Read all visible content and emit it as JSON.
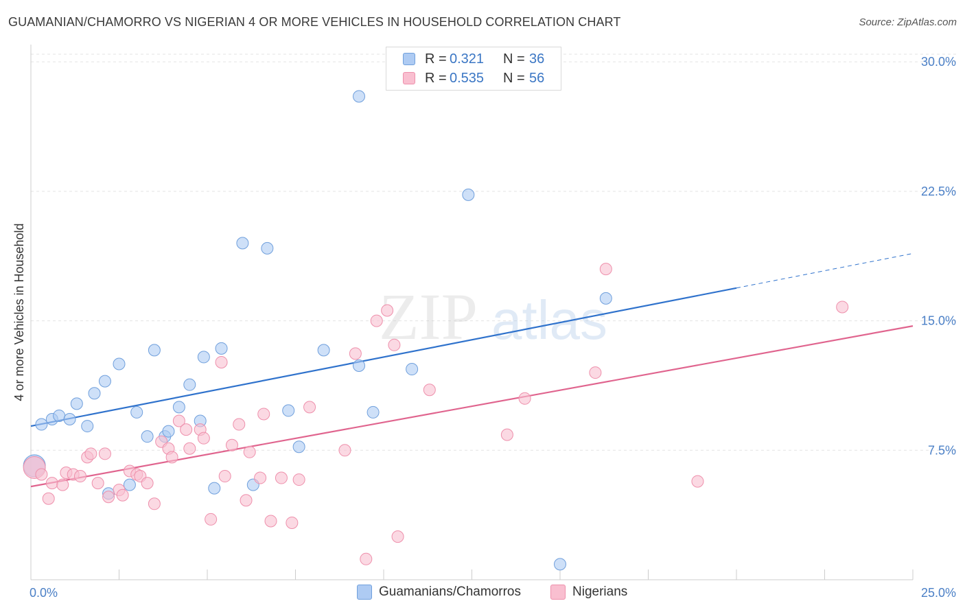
{
  "title": "GUAMANIAN/CHAMORRO VS NIGERIAN 4 OR MORE VEHICLES IN HOUSEHOLD CORRELATION CHART",
  "source": "Source: ZipAtlas.com",
  "watermark": {
    "zip": "ZIP",
    "atlas": "atlas"
  },
  "legend": {
    "rows": [
      {
        "r_label": "R =",
        "r_value": "0.321",
        "n_label": "N =",
        "n_value": "36",
        "color": "#aecbf3"
      },
      {
        "r_label": "R =",
        "r_value": "0.535",
        "n_label": "N =",
        "n_value": "56",
        "color": "#f9bfd0"
      }
    ]
  },
  "bottom_legend": [
    {
      "label": "Guamanians/Chamorros",
      "color": "#aecbf3"
    },
    {
      "label": "Nigerians",
      "color": "#f9bfd0"
    }
  ],
  "chart_data": {
    "type": "scatter",
    "xlabel": "",
    "ylabel": "4 or more Vehicles in Household",
    "xlim": [
      0,
      25
    ],
    "ylim": [
      0,
      31
    ],
    "x_tick_labels": [
      {
        "value": 0,
        "label": "0.0%"
      },
      {
        "value": 25,
        "label": "25.0%"
      }
    ],
    "y_tick_labels": [
      {
        "value": 7.5,
        "label": "7.5%"
      },
      {
        "value": 15,
        "label": "15.0%"
      },
      {
        "value": 22.5,
        "label": "22.5%"
      },
      {
        "value": 30,
        "label": "30.0%"
      }
    ],
    "grid": true,
    "series": [
      {
        "name": "Guamanians/Chamorros",
        "color": "#aecbf3",
        "stroke": "#6f9fdc",
        "trend_color": "#2f72cc",
        "trend": {
          "x0": 0,
          "y0": 8.9,
          "x1": 20,
          "y1": 16.9,
          "dash_to_x": 25,
          "dash_to_y": 18.9
        },
        "points": [
          [
            0.1,
            6.6
          ],
          [
            0.3,
            9.0
          ],
          [
            0.6,
            9.3
          ],
          [
            0.8,
            9.5
          ],
          [
            1.1,
            9.3
          ],
          [
            1.3,
            10.2
          ],
          [
            1.6,
            8.9
          ],
          [
            1.8,
            10.8
          ],
          [
            2.1,
            11.5
          ],
          [
            2.2,
            5.0
          ],
          [
            2.5,
            12.5
          ],
          [
            2.8,
            5.5
          ],
          [
            3.0,
            9.7
          ],
          [
            3.3,
            8.3
          ],
          [
            3.5,
            13.3
          ],
          [
            3.8,
            8.3
          ],
          [
            3.9,
            8.6
          ],
          [
            4.2,
            10.0
          ],
          [
            4.5,
            11.3
          ],
          [
            4.8,
            9.2
          ],
          [
            4.9,
            12.9
          ],
          [
            5.2,
            5.3
          ],
          [
            5.4,
            13.4
          ],
          [
            6.0,
            19.5
          ],
          [
            6.3,
            5.5
          ],
          [
            6.7,
            19.2
          ],
          [
            7.3,
            9.8
          ],
          [
            7.6,
            7.7
          ],
          [
            8.3,
            13.3
          ],
          [
            9.3,
            28.0
          ],
          [
            9.3,
            12.4
          ],
          [
            9.7,
            9.7
          ],
          [
            10.8,
            12.2
          ],
          [
            12.4,
            22.3
          ],
          [
            15.0,
            0.9
          ],
          [
            16.3,
            16.3
          ]
        ]
      },
      {
        "name": "Nigerians",
        "color": "#f9bfd0",
        "stroke": "#ee8fab",
        "trend_color": "#e0648e",
        "trend": {
          "x0": 0,
          "y0": 5.4,
          "x1": 25,
          "y1": 14.7
        },
        "points": [
          [
            0.1,
            6.5
          ],
          [
            0.3,
            6.1
          ],
          [
            0.5,
            4.7
          ],
          [
            0.6,
            5.6
          ],
          [
            0.9,
            5.5
          ],
          [
            1.0,
            6.2
          ],
          [
            1.2,
            6.1
          ],
          [
            1.4,
            6.0
          ],
          [
            1.6,
            7.1
          ],
          [
            1.7,
            7.3
          ],
          [
            1.9,
            5.6
          ],
          [
            2.1,
            7.3
          ],
          [
            2.2,
            4.8
          ],
          [
            2.5,
            5.2
          ],
          [
            2.6,
            4.9
          ],
          [
            2.8,
            6.3
          ],
          [
            3.0,
            6.1
          ],
          [
            3.1,
            6.0
          ],
          [
            3.3,
            5.6
          ],
          [
            3.5,
            4.4
          ],
          [
            3.7,
            8.0
          ],
          [
            3.9,
            7.6
          ],
          [
            4.0,
            7.1
          ],
          [
            4.2,
            9.2
          ],
          [
            4.4,
            8.7
          ],
          [
            4.5,
            7.6
          ],
          [
            4.8,
            8.7
          ],
          [
            4.9,
            8.2
          ],
          [
            5.1,
            3.5
          ],
          [
            5.4,
            12.6
          ],
          [
            5.5,
            6.0
          ],
          [
            5.7,
            7.8
          ],
          [
            5.9,
            9.0
          ],
          [
            6.1,
            4.6
          ],
          [
            6.2,
            7.4
          ],
          [
            6.5,
            5.9
          ],
          [
            6.6,
            9.6
          ],
          [
            6.8,
            3.4
          ],
          [
            7.1,
            5.9
          ],
          [
            7.4,
            3.3
          ],
          [
            7.6,
            5.8
          ],
          [
            7.9,
            10.0
          ],
          [
            8.9,
            7.5
          ],
          [
            9.2,
            13.1
          ],
          [
            9.5,
            1.2
          ],
          [
            9.8,
            15.0
          ],
          [
            10.1,
            15.6
          ],
          [
            10.3,
            13.6
          ],
          [
            10.4,
            2.5
          ],
          [
            11.3,
            11.0
          ],
          [
            13.5,
            8.4
          ],
          [
            14.0,
            10.5
          ],
          [
            16.0,
            12.0
          ],
          [
            16.3,
            18.0
          ],
          [
            18.9,
            5.7
          ],
          [
            23.0,
            15.8
          ]
        ]
      }
    ]
  }
}
